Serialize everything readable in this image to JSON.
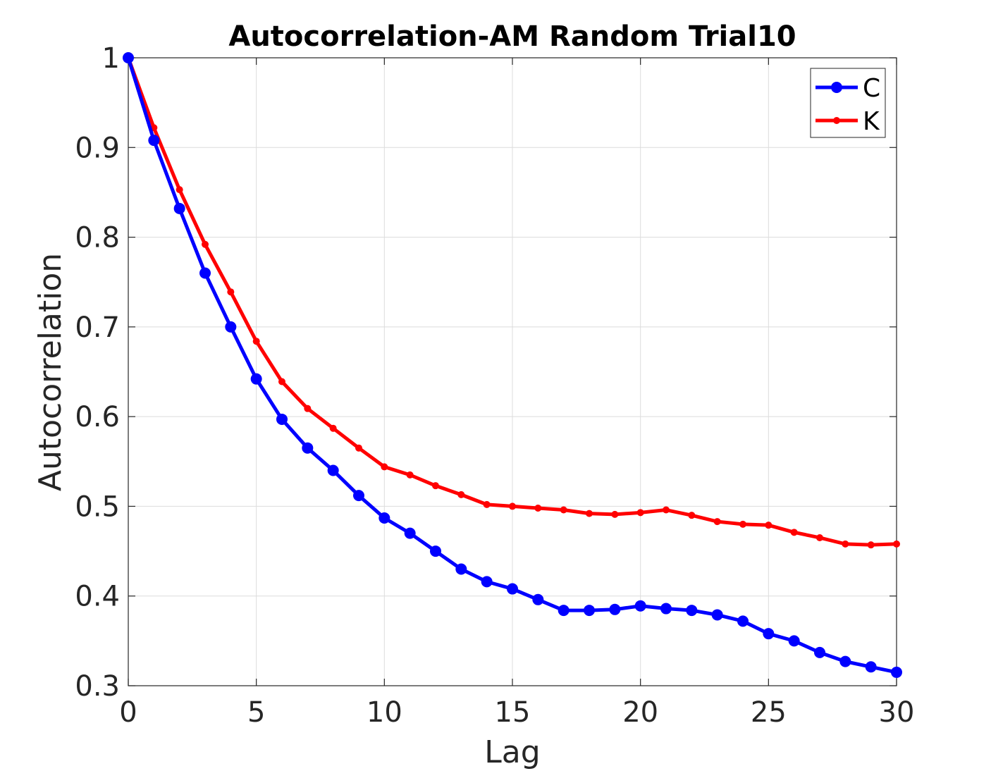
{
  "chart_data": {
    "type": "line",
    "title": "Autocorrelation-AM Random Trial10",
    "xlabel": "Lag",
    "ylabel": "Autocorrelation",
    "xlim": [
      0,
      30
    ],
    "ylim": [
      0.3,
      1
    ],
    "x_ticks": [
      0,
      5,
      10,
      15,
      20,
      25,
      30
    ],
    "x_tick_labels": [
      "0",
      "5",
      "10",
      "15",
      "20",
      "25",
      "30"
    ],
    "y_ticks": [
      0.3,
      0.4,
      0.5,
      0.6,
      0.7,
      0.8,
      0.9,
      1
    ],
    "y_tick_labels": [
      "0.3",
      "0.4",
      "0.5",
      "0.6",
      "0.7",
      "0.8",
      "0.9",
      "1"
    ],
    "grid": true,
    "legend_position": "top-right",
    "x": [
      0,
      1,
      2,
      3,
      4,
      5,
      6,
      7,
      8,
      9,
      10,
      11,
      12,
      13,
      14,
      15,
      16,
      17,
      18,
      19,
      20,
      21,
      22,
      23,
      24,
      25,
      26,
      27,
      28,
      29,
      30
    ],
    "series": [
      {
        "name": "C",
        "color": "#0000ff",
        "marker": "large-circle",
        "values": [
          1.0,
          0.908,
          0.832,
          0.76,
          0.7,
          0.642,
          0.597,
          0.565,
          0.54,
          0.512,
          0.487,
          0.47,
          0.45,
          0.43,
          0.416,
          0.408,
          0.396,
          0.384,
          0.384,
          0.385,
          0.389,
          0.386,
          0.384,
          0.379,
          0.372,
          0.358,
          0.35,
          0.337,
          0.327,
          0.321,
          0.315
        ]
      },
      {
        "name": "K",
        "color": "#ff0000",
        "marker": "small-dot",
        "values": [
          1.0,
          0.922,
          0.853,
          0.792,
          0.739,
          0.684,
          0.639,
          0.609,
          0.587,
          0.565,
          0.544,
          0.535,
          0.523,
          0.513,
          0.502,
          0.5,
          0.498,
          0.496,
          0.492,
          0.491,
          0.493,
          0.496,
          0.49,
          0.483,
          0.48,
          0.479,
          0.471,
          0.465,
          0.458,
          0.457,
          0.458
        ]
      }
    ]
  }
}
